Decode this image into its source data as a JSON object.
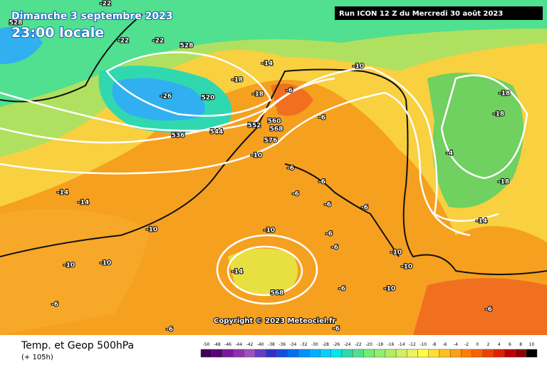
{
  "header": {
    "date": "Dimanche 3 septembre 2023",
    "time": "23:00 locale",
    "run": "Run ICON 12 Z du Mercredi 30 août 2023",
    "copyright": "Copyright © 2023 Meteociel.fr"
  },
  "footer": {
    "title": "Temp. et Geop 500hPa",
    "lead": "(+ 105h)"
  },
  "legend": {
    "labels": [
      -50,
      -48,
      -46,
      -44,
      -42,
      -40,
      -38,
      -36,
      -34,
      -32,
      -30,
      -28,
      -26,
      -24,
      -22,
      -20,
      -18,
      -16,
      -14,
      -12,
      -10,
      -8,
      -6,
      -4,
      -2,
      0,
      2,
      4,
      6,
      8,
      10
    ],
    "colors": [
      "#3c0050",
      "#5a007a",
      "#7a1a9a",
      "#9030b0",
      "#a050c0",
      "#6040c0",
      "#3030d0",
      "#1050e0",
      "#0070f0",
      "#0090ff",
      "#00b0ff",
      "#00d0ff",
      "#00e8e8",
      "#30d8b0",
      "#50e090",
      "#70f070",
      "#90f070",
      "#b0f060",
      "#d0f060",
      "#f0f060",
      "#ffff40",
      "#ffe030",
      "#ffc020",
      "#ffa010",
      "#ff8000",
      "#ff6000",
      "#f04000",
      "#e02000",
      "#c00000",
      "#900000",
      "#000000"
    ]
  },
  "map_labels": [
    -22,
    -22,
    -22,
    528,
    528,
    -18,
    -18,
    -18,
    -18,
    -26,
    520,
    -6,
    -6,
    -6,
    -6,
    -6,
    -6,
    -6,
    -6,
    -6,
    -6,
    -6,
    -6,
    -6,
    -6,
    -14,
    -14,
    -14,
    -14,
    -14,
    -10,
    -10,
    -10,
    -10,
    -10,
    -10,
    -10,
    -10,
    -10,
    560,
    568,
    568,
    552,
    544,
    536,
    576,
    -4,
    -18
  ]
}
